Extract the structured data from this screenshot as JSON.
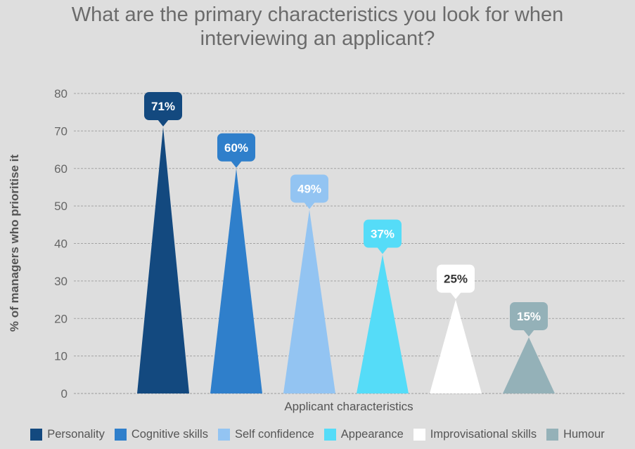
{
  "chart_data": {
    "type": "bar",
    "title_lines": [
      "What are the primary characteristics you look for when",
      "interviewing an applicant?"
    ],
    "xlabel": "Applicant characteristics",
    "ylabel": "% of managers who prioritise it",
    "ylim": [
      0,
      80
    ],
    "yticks": [
      0,
      10,
      20,
      30,
      40,
      50,
      60,
      70,
      80
    ],
    "grid": true,
    "legend_position": "bottom",
    "categories": [
      "Personality",
      "Cognitive skills",
      "Self confidence",
      "Appearance",
      "Improvisational skills",
      "Humour"
    ],
    "values": [
      71,
      60,
      49,
      37,
      25,
      15
    ],
    "data_labels": [
      "71%",
      "60%",
      "49%",
      "37%",
      "25%",
      "15%"
    ],
    "colors": [
      "#13497f",
      "#2f7fcb",
      "#93c4f2",
      "#55dcf8",
      "#ffffff",
      "#94b1b8"
    ],
    "label_text_colors": [
      "#ffffff",
      "#ffffff",
      "#ffffff",
      "#ffffff",
      "#333333",
      "#ffffff"
    ]
  }
}
